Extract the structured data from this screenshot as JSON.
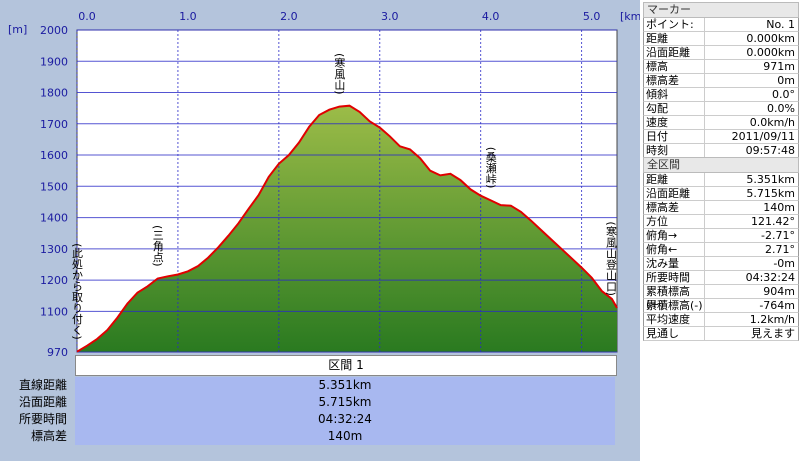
{
  "chart_data": {
    "type": "area",
    "x_unit": "[km]",
    "y_unit": "[m]",
    "x": [
      0,
      0.1,
      0.2,
      0.3,
      0.4,
      0.5,
      0.6,
      0.7,
      0.8,
      0.9,
      1.0,
      1.1,
      1.2,
      1.3,
      1.4,
      1.5,
      1.6,
      1.7,
      1.8,
      1.9,
      2.0,
      2.1,
      2.2,
      2.3,
      2.4,
      2.5,
      2.6,
      2.7,
      2.8,
      2.9,
      3.0,
      3.1,
      3.2,
      3.3,
      3.4,
      3.5,
      3.6,
      3.7,
      3.8,
      3.9,
      4.0,
      4.1,
      4.2,
      4.3,
      4.4,
      4.5,
      4.6,
      4.7,
      4.8,
      4.9,
      5.0,
      5.1,
      5.2,
      5.3,
      5.351
    ],
    "series": [
      {
        "color": "#e00000",
        "fill_top": "#9cbc48",
        "fill_bottom": "#2a7a20",
        "values": [
          971,
          990,
          1012,
          1040,
          1080,
          1125,
          1160,
          1180,
          1205,
          1212,
          1218,
          1228,
          1245,
          1272,
          1305,
          1342,
          1382,
          1428,
          1472,
          1530,
          1572,
          1600,
          1640,
          1690,
          1728,
          1745,
          1755,
          1758,
          1738,
          1708,
          1688,
          1660,
          1628,
          1618,
          1590,
          1550,
          1535,
          1540,
          1520,
          1490,
          1470,
          1455,
          1440,
          1438,
          1418,
          1390,
          1360,
          1330,
          1300,
          1270,
          1240,
          1208,
          1165,
          1140,
          1111
        ]
      }
    ],
    "xlim": [
      0,
      5.351
    ],
    "ylim": [
      970,
      2000
    ],
    "xticks": [
      {
        "value": 0,
        "label": "0.0"
      },
      {
        "value": 1,
        "label": "1.0"
      },
      {
        "value": 2,
        "label": "2.0"
      },
      {
        "value": 3,
        "label": "3.0"
      },
      {
        "value": 4,
        "label": "4.0"
      },
      {
        "value": 5,
        "label": "5.0"
      }
    ],
    "yticks": [
      970,
      1100,
      1200,
      1300,
      1400,
      1500,
      1600,
      1700,
      1800,
      1900,
      2000
    ],
    "grid": true,
    "annotations": [
      {
        "text": "(此処から取り付く)",
        "x": 0
      },
      {
        "text": "(三角点)",
        "x": 0.8
      },
      {
        "text": "(寒風山)",
        "x": 2.6
      },
      {
        "text": "(桑瀬峠)",
        "x": 4.1
      },
      {
        "text": "(寒風山登山口)",
        "x": 5.351
      }
    ]
  },
  "segment": {
    "header": "区間 1",
    "rows": [
      [
        "直線距離",
        "5.351km"
      ],
      [
        "沿面距離",
        "5.715km"
      ],
      [
        "所要時間",
        "04:32:24"
      ],
      [
        "標高差",
        "140m"
      ]
    ]
  },
  "marker_panel": {
    "title": "マーカー",
    "rows": [
      [
        "ポイント:",
        "No. 1"
      ],
      [
        "距離",
        "0.000km"
      ],
      [
        "沿面距離",
        "0.000km"
      ],
      [
        "標高",
        "971m"
      ],
      [
        "標高差",
        "0m"
      ],
      [
        "傾斜",
        "0.0°"
      ],
      [
        "勾配",
        "0.0%"
      ],
      [
        "速度",
        "0.0km/h"
      ],
      [
        "日付",
        "2011/09/11"
      ],
      [
        "時刻",
        "09:57:48"
      ]
    ]
  },
  "total_panel": {
    "title": "全区間",
    "rows": [
      [
        "距離",
        "5.351km"
      ],
      [
        "沿面距離",
        "5.715km"
      ],
      [
        "標高差",
        "140m"
      ],
      [
        "方位",
        "121.42°"
      ],
      [
        "俯角→",
        "-2.71°"
      ],
      [
        "俯角←",
        "2.71°"
      ],
      [
        "沈み量",
        "-0m"
      ],
      [
        "所要時間",
        "04:32:24"
      ],
      [
        "累積標高(+)",
        "904m"
      ],
      [
        "累積標高(-)",
        "-764m"
      ],
      [
        "平均速度",
        "1.2km/h"
      ],
      [
        "見通し",
        "見えます"
      ]
    ]
  }
}
